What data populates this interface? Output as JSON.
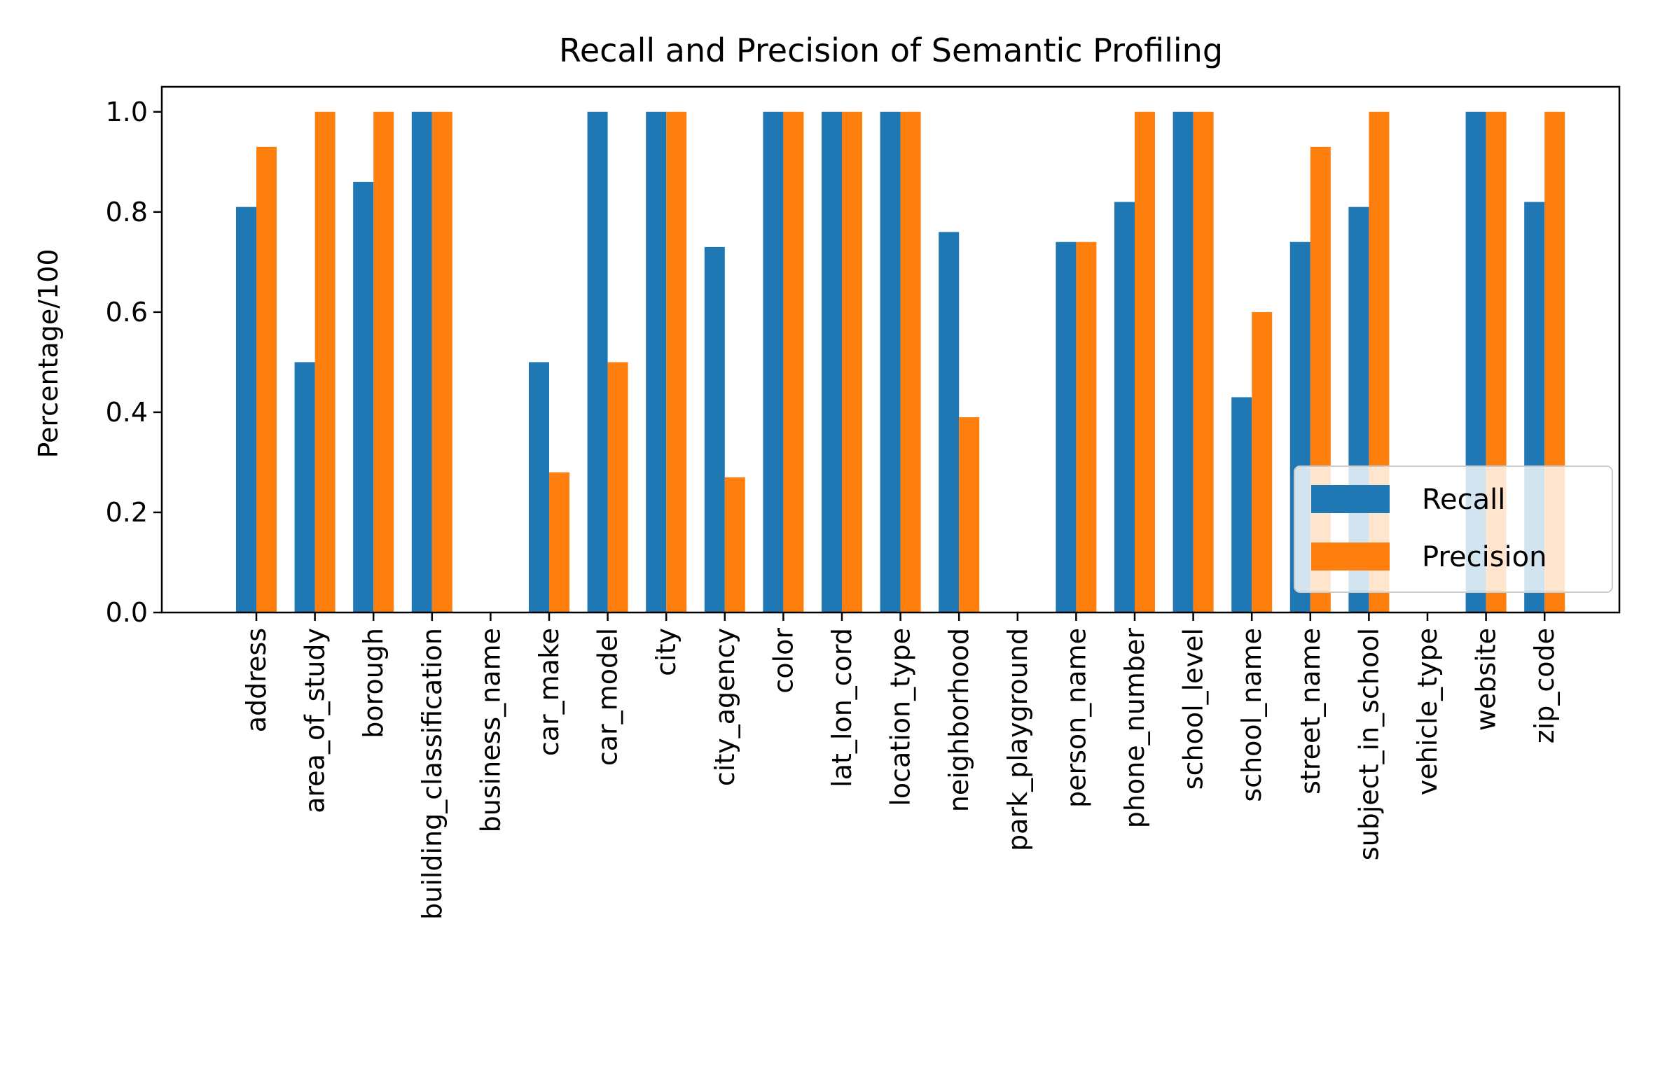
{
  "chart_data": {
    "type": "bar",
    "title": "Recall and Precision of Semantic Profiling",
    "xlabel": "",
    "ylabel": "Percentage/100",
    "ylim": [
      0,
      1.05
    ],
    "yticks": [
      0.0,
      0.2,
      0.4,
      0.6,
      0.8,
      1.0
    ],
    "ytick_labels": [
      "0.0",
      "0.2",
      "0.4",
      "0.6",
      "0.8",
      "1.0"
    ],
    "grid": false,
    "legend_position": "lower-right",
    "categories": [
      "address",
      "area_of_study",
      "borough",
      "building_classification",
      "business_name",
      "car_make",
      "car_model",
      "city",
      "city_agency",
      "color",
      "lat_lon_cord",
      "location_type",
      "neighborhood",
      "park_playground",
      "person_name",
      "phone_number",
      "school_level",
      "school_name",
      "street_name",
      "subject_in_school",
      "vehicle_type",
      "website",
      "zip_code"
    ],
    "series": [
      {
        "name": "Recall",
        "color": "#1f77b4",
        "values": [
          0.81,
          0.5,
          0.86,
          1.0,
          0.0,
          0.5,
          1.0,
          1.0,
          0.73,
          1.0,
          1.0,
          1.0,
          0.76,
          0.0,
          0.74,
          0.82,
          1.0,
          0.43,
          0.74,
          0.81,
          0.0,
          1.0,
          0.82
        ]
      },
      {
        "name": "Precision",
        "color": "#ff7f0e",
        "values": [
          0.93,
          1.0,
          1.0,
          1.0,
          0.0,
          0.28,
          0.5,
          1.0,
          0.27,
          1.0,
          1.0,
          1.0,
          0.39,
          0.0,
          0.74,
          1.0,
          1.0,
          0.6,
          0.93,
          1.0,
          0.0,
          1.0,
          1.0
        ]
      }
    ]
  }
}
